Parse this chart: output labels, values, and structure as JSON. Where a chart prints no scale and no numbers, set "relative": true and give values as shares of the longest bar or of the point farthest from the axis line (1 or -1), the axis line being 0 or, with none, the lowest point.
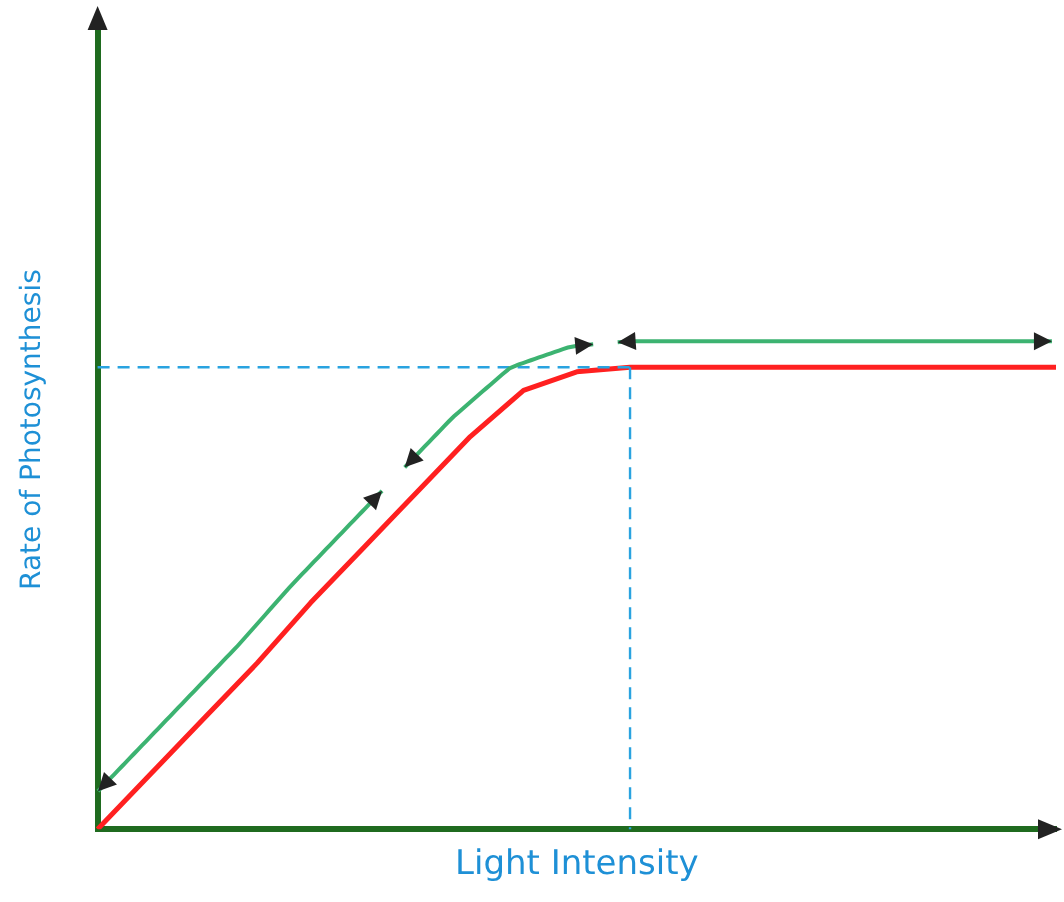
{
  "chart_data": {
    "type": "line",
    "xlabel": "Light Intensity",
    "ylabel": "Rate of Photosynthesis",
    "relative": true,
    "categories": [
      null,
      null,
      null,
      null,
      null,
      null,
      null,
      null,
      null,
      null,
      null,
      null,
      null,
      null,
      null,
      null,
      null,
      null,
      null
    ],
    "series": [
      {
        "color": "#ff2020",
        "values": [
          0,
          0.12,
          0.24,
          0.36,
          0.49,
          0.61,
          0.73,
          0.85,
          0.95,
          0.99,
          1,
          1,
          1,
          1,
          1,
          1,
          1,
          1,
          1
        ]
      }
    ],
    "ref_lines": [
      {
        "axis": "y",
        "value": 1,
        "color": "#29a3e0",
        "line_style": "dashed"
      }
    ],
    "grid": false,
    "legend": false,
    "tick_labels": false,
    "marker": "none",
    "line_style": "solid"
  }
}
